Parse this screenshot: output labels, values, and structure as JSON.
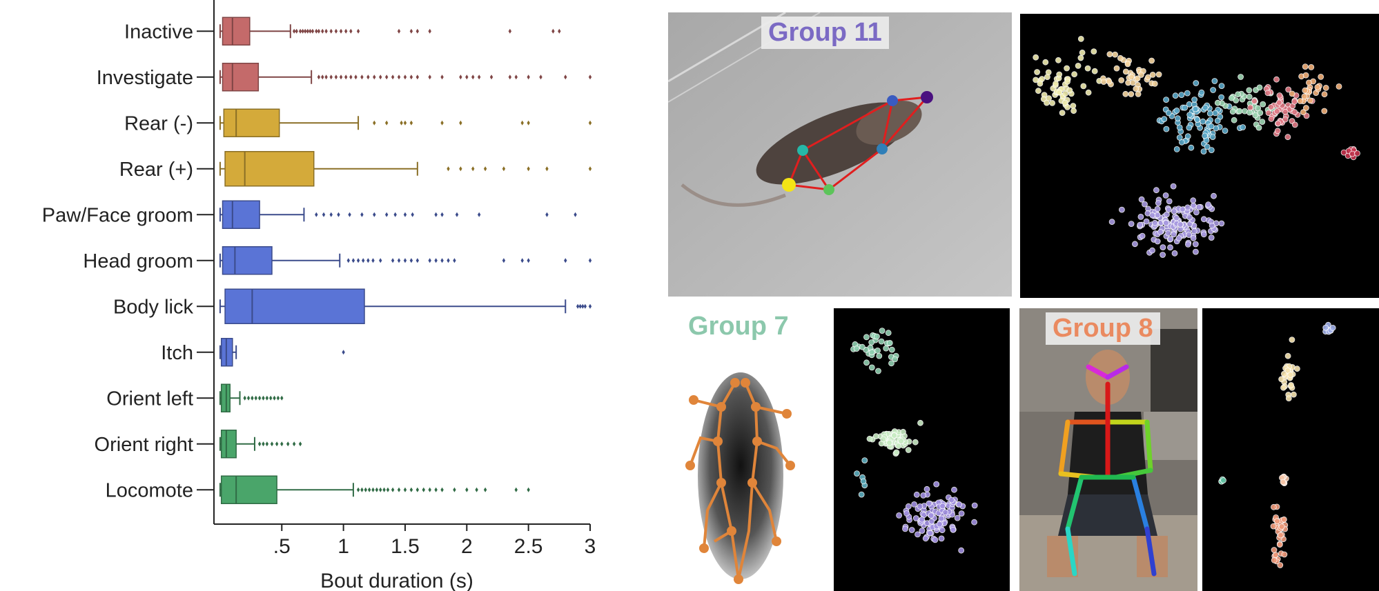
{
  "chart_data": {
    "type": "box",
    "orientation": "horizontal",
    "xlabel": "Bout duration (s)",
    "ylabel": "",
    "xlim": [
      -0.05,
      3.0
    ],
    "x_ticks": [
      ".5",
      "1",
      "1.5",
      "2",
      "2.5",
      "3"
    ],
    "x_tick_values": [
      0.5,
      1,
      1.5,
      2,
      2.5,
      3
    ],
    "grid": false,
    "categories": [
      "Inactive",
      "Investigate",
      "Rear (-)",
      "Rear (+)",
      "Paw/Face groom",
      "Head groom",
      "Body lick",
      "Itch",
      "Orient left",
      "Orient right",
      "Locomote"
    ],
    "boxes": [
      {
        "label": "Inactive",
        "color": "#c46a6a",
        "whisker_low": 0.0,
        "q1": 0.02,
        "median": 0.1,
        "q3": 0.24,
        "whisker_high": 0.57,
        "outliers": [
          0.6,
          0.62,
          0.65,
          0.67,
          0.69,
          0.71,
          0.73,
          0.75,
          0.78,
          0.8,
          0.83,
          0.86,
          0.9,
          0.94,
          0.98,
          1.02,
          1.06,
          1.12,
          1.45,
          1.55,
          1.6,
          1.7,
          2.35,
          2.7,
          2.75
        ]
      },
      {
        "label": "Investigate",
        "color": "#c46a6a",
        "whisker_low": 0.0,
        "q1": 0.02,
        "median": 0.1,
        "q3": 0.31,
        "whisker_high": 0.74,
        "outliers": [
          0.8,
          0.83,
          0.86,
          0.9,
          0.94,
          0.98,
          1.02,
          1.06,
          1.1,
          1.15,
          1.2,
          1.25,
          1.3,
          1.35,
          1.4,
          1.45,
          1.5,
          1.55,
          1.6,
          1.7,
          1.8,
          1.95,
          2.0,
          2.05,
          2.1,
          2.2,
          2.35,
          2.4,
          2.5,
          2.6,
          2.8,
          3.0
        ]
      },
      {
        "label": "Rear (-)",
        "color": "#d4aa3a",
        "whisker_low": 0.0,
        "q1": 0.03,
        "median": 0.13,
        "q3": 0.48,
        "whisker_high": 1.12,
        "outliers": [
          1.25,
          1.35,
          1.47,
          1.5,
          1.55,
          1.8,
          1.95,
          2.45,
          2.5,
          3.0
        ]
      },
      {
        "label": "Rear (+)",
        "color": "#d4aa3a",
        "whisker_low": 0.0,
        "q1": 0.04,
        "median": 0.2,
        "q3": 0.76,
        "whisker_high": 1.6,
        "outliers": [
          1.85,
          1.95,
          2.05,
          2.15,
          2.3,
          2.5,
          2.65,
          3.0
        ]
      },
      {
        "label": "Paw/Face groom",
        "color": "#5a74d6",
        "whisker_low": 0.0,
        "q1": 0.02,
        "median": 0.1,
        "q3": 0.32,
        "whisker_high": 0.68,
        "outliers": [
          0.78,
          0.84,
          0.9,
          0.96,
          1.05,
          1.15,
          1.25,
          1.35,
          1.42,
          1.5,
          1.56,
          1.75,
          1.8,
          1.92,
          2.1,
          2.65,
          2.88
        ]
      },
      {
        "label": "Head groom",
        "color": "#5a74d6",
        "whisker_low": 0.0,
        "q1": 0.02,
        "median": 0.12,
        "q3": 0.42,
        "whisker_high": 0.97,
        "outliers": [
          1.04,
          1.08,
          1.12,
          1.16,
          1.2,
          1.24,
          1.3,
          1.4,
          1.45,
          1.5,
          1.55,
          1.6,
          1.7,
          1.75,
          1.8,
          1.85,
          1.9,
          2.3,
          2.45,
          2.5,
          2.8,
          3.0
        ]
      },
      {
        "label": "Body lick",
        "color": "#5a74d6",
        "whisker_low": 0.0,
        "q1": 0.04,
        "median": 0.26,
        "q3": 1.17,
        "whisker_high": 2.8,
        "outliers": [
          2.9,
          2.92,
          2.94,
          2.96,
          3.0
        ]
      },
      {
        "label": "Itch",
        "color": "#5a74d6",
        "whisker_low": 0.0,
        "q1": 0.01,
        "median": 0.05,
        "q3": 0.1,
        "whisker_high": 0.13,
        "outliers": [
          1.0
        ]
      },
      {
        "label": "Orient left",
        "color": "#4aa56a",
        "whisker_low": 0.0,
        "q1": 0.01,
        "median": 0.05,
        "q3": 0.08,
        "whisker_high": 0.16,
        "outliers": [
          0.2,
          0.23,
          0.26,
          0.29,
          0.32,
          0.35,
          0.38,
          0.41,
          0.44,
          0.47,
          0.5
        ]
      },
      {
        "label": "Orient right",
        "color": "#4aa56a",
        "whisker_low": 0.0,
        "q1": 0.01,
        "median": 0.05,
        "q3": 0.13,
        "whisker_high": 0.28,
        "outliers": [
          0.32,
          0.35,
          0.38,
          0.42,
          0.46,
          0.5,
          0.55,
          0.6,
          0.65
        ]
      },
      {
        "label": "Locomote",
        "color": "#4aa56a",
        "whisker_low": 0.0,
        "q1": 0.01,
        "median": 0.13,
        "q3": 0.46,
        "whisker_high": 1.08,
        "outliers": [
          1.12,
          1.15,
          1.18,
          1.21,
          1.24,
          1.27,
          1.3,
          1.33,
          1.36,
          1.4,
          1.45,
          1.5,
          1.55,
          1.6,
          1.65,
          1.7,
          1.75,
          1.8,
          1.9,
          2.0,
          2.08,
          2.15,
          2.4,
          2.5
        ]
      }
    ]
  },
  "panels": {
    "group11_label": "Group 11",
    "group11_color": "#7b6ac4",
    "group7_label": "Group 7",
    "group7_color": "#8cc8ac",
    "group8_label": "Group 8",
    "group8_color": "#ea8a60"
  }
}
